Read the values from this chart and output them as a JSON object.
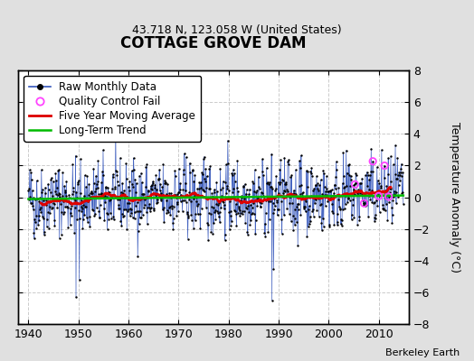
{
  "title": "COTTAGE GROVE DAM",
  "subtitle": "43.718 N, 123.058 W (United States)",
  "ylabel": "Temperature Anomaly (°C)",
  "attribution": "Berkeley Earth",
  "xlim": [
    1938,
    2016
  ],
  "ylim": [
    -8,
    8
  ],
  "yticks": [
    -8,
    -6,
    -4,
    -2,
    0,
    2,
    4,
    6,
    8
  ],
  "xticks": [
    1940,
    1950,
    1960,
    1970,
    1980,
    1990,
    2000,
    2010
  ],
  "year_start": 1940,
  "year_end": 2015,
  "seed": 42,
  "bg_color": "#e0e0e0",
  "plot_bg_color": "#ffffff",
  "grid_color": "#cccccc",
  "raw_line_color": "#3355bb",
  "raw_dot_color": "#000000",
  "ma_color": "#dd0000",
  "trend_color": "#00bb00",
  "qc_color": "#ff44ff",
  "legend_fontsize": 8.5,
  "title_fontsize": 12,
  "subtitle_fontsize": 9,
  "tick_labelsize": 9,
  "attribution_fontsize": 8
}
